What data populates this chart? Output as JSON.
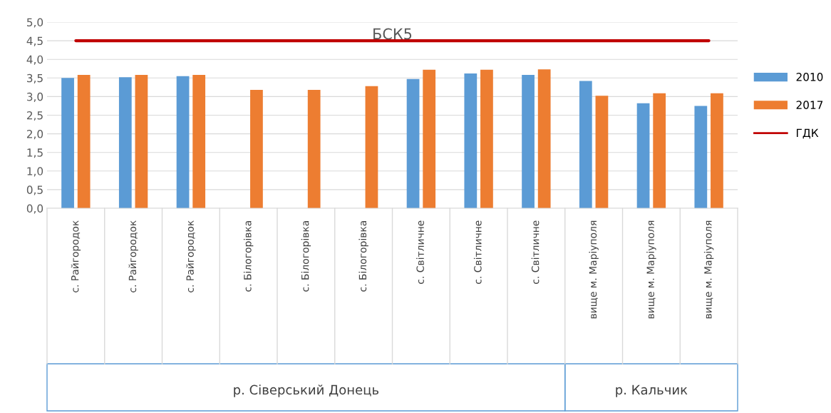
{
  "chart_data": {
    "type": "bar",
    "title": "БСК5",
    "categories": [
      "с. Райгородок",
      "с. Райгородок",
      "с. Райгородок",
      "с. Білогорівка",
      "с. Білогорівка",
      "с. Білогорівка",
      "с. Світличне",
      "с. Світличне",
      "с. Світличне",
      "вище м. Маріуполя",
      "вище м. Маріуполя",
      "вище м. Маріуполя"
    ],
    "series": [
      {
        "name": "2010",
        "color": "#5b9bd5",
        "values": [
          3.5,
          3.52,
          3.55,
          null,
          null,
          null,
          3.47,
          3.62,
          3.58,
          3.42,
          2.82,
          2.75
        ]
      },
      {
        "name": "2017",
        "color": "#ed7d31",
        "values": [
          3.58,
          3.58,
          3.58,
          3.18,
          3.18,
          3.28,
          3.72,
          3.72,
          3.73,
          3.02,
          3.09,
          3.09
        ]
      },
      {
        "name": "ГДК",
        "type": "line",
        "color": "#c00000",
        "values": [
          4.5,
          4.5,
          4.5,
          4.5,
          4.5,
          4.5,
          4.5,
          4.5,
          4.5,
          4.5,
          4.5,
          4.5
        ]
      }
    ],
    "ylim": [
      0,
      5
    ],
    "yticks": [
      {
        "value": 0,
        "label": "0,0"
      },
      {
        "value": 0.5,
        "label": "0,5"
      },
      {
        "value": 1,
        "label": "1,0"
      },
      {
        "value": 1.5,
        "label": "1,5"
      },
      {
        "value": 2,
        "label": "2,0"
      },
      {
        "value": 2.5,
        "label": "2,5"
      },
      {
        "value": 3,
        "label": "3,0"
      },
      {
        "value": 3.5,
        "label": "3,5"
      },
      {
        "value": 4,
        "label": "4,0"
      },
      {
        "value": 4.5,
        "label": "4,5"
      },
      {
        "value": 5,
        "label": "5,0"
      }
    ],
    "annotations": [
      "р. Сіверський Донець",
      "р. Кальчик"
    ],
    "grid": "y",
    "legend": "right"
  }
}
